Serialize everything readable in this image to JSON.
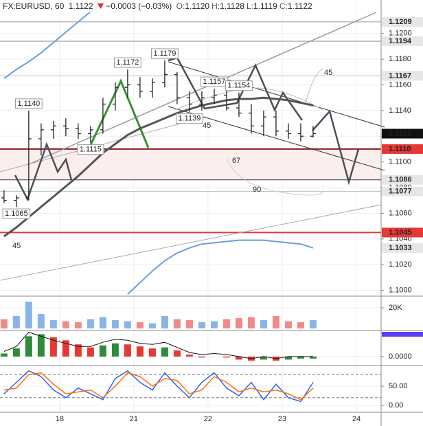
{
  "header": {
    "symbol": "FX:EURUSD, 60",
    "last": "1.1122",
    "change": "−0.0003 (−0.03%)",
    "ohlc": [
      {
        "key": "O:",
        "value": "1.1120"
      },
      {
        "key": "H:",
        "value": "1.1128"
      },
      {
        "key": "L:",
        "value": "1.1119"
      },
      {
        "key": "C:",
        "value": "1.1122"
      }
    ]
  },
  "chart_data": [
    {
      "type": "ohlc",
      "color": "#222",
      "x": [
        -18,
        -14,
        -10,
        -6,
        -2,
        2,
        6,
        10,
        14,
        18,
        22,
        26,
        30,
        34,
        38,
        42,
        46,
        50,
        54,
        58,
        62,
        66,
        70,
        74,
        78,
        82
      ],
      "open": [
        1.1072,
        1.107,
        1.1072,
        1.1118,
        1.1125,
        1.1128,
        1.1126,
        1.1122,
        1.1125,
        1.1145,
        1.1158,
        1.116,
        1.1155,
        1.1162,
        1.1168,
        1.115,
        1.1145,
        1.115,
        1.1152,
        1.1142,
        1.1138,
        1.1128,
        1.1135,
        1.1124,
        1.1122,
        1.112
      ],
      "high": [
        1.1078,
        1.1074,
        1.114,
        1.113,
        1.1132,
        1.1134,
        1.113,
        1.1128,
        1.115,
        1.1162,
        1.1172,
        1.1166,
        1.1165,
        1.1179,
        1.117,
        1.1155,
        1.1155,
        1.1157,
        1.1158,
        1.1154,
        1.1145,
        1.114,
        1.114,
        1.113,
        1.113,
        1.1128
      ],
      "low": [
        1.1068,
        1.1065,
        1.107,
        1.1105,
        1.1118,
        1.112,
        1.1118,
        1.1115,
        1.1122,
        1.114,
        1.115,
        1.115,
        1.115,
        1.1158,
        1.1145,
        1.1139,
        1.114,
        1.1145,
        1.114,
        1.1135,
        1.1122,
        1.112,
        1.112,
        1.1118,
        1.1116,
        1.1119
      ],
      "close": [
        1.107,
        1.1072,
        1.1118,
        1.1125,
        1.1128,
        1.1126,
        1.1122,
        1.1125,
        1.1145,
        1.1158,
        1.116,
        1.1155,
        1.1162,
        1.1168,
        1.115,
        1.1145,
        1.115,
        1.1152,
        1.1142,
        1.1138,
        1.1128,
        1.1135,
        1.1124,
        1.1122,
        1.112,
        1.1122
      ],
      "xlim": [
        -19.3,
        104
      ],
      "ylim": [
        1.0996,
        1.1225
      ],
      "xticks": [
        {
          "value": 0,
          "label": "18"
        },
        {
          "value": 24,
          "label": "21"
        },
        {
          "value": 48,
          "label": "22"
        },
        {
          "value": 72,
          "label": "23"
        },
        {
          "value": 96,
          "label": "24"
        }
      ],
      "yticks": [
        {
          "value": 1.1,
          "label": "1.1000"
        },
        {
          "value": 1.102,
          "label": "1.1020"
        },
        {
          "value": 1.104,
          "label": "1.1040"
        },
        {
          "value": 1.106,
          "label": "1.1060"
        },
        {
          "value": 1.108,
          "label": "1.1080"
        },
        {
          "value": 1.11,
          "label": "1.1100"
        },
        {
          "value": 1.112,
          "label": "1.1120"
        },
        {
          "value": 1.114,
          "label": "1.1140"
        },
        {
          "value": 1.116,
          "label": "1.1160"
        },
        {
          "value": 1.118,
          "label": "1.1180"
        },
        {
          "value": 1.12,
          "label": "1.1200"
        }
      ],
      "grid": true,
      "overlays": [
        {
          "color": "#555",
          "width": 3,
          "values": [
            1.1042,
            1.1049,
            1.1057,
            1.1065,
            1.1073,
            1.1081,
            1.1089,
            1.1098,
            1.1107,
            1.1114,
            1.1121,
            1.1126,
            1.113,
            1.1134,
            1.1138,
            1.1141,
            1.1144,
            1.1146,
            1.1148,
            1.1149,
            1.1149,
            1.115,
            1.1149,
            1.1148,
            1.1146,
            1.1144
          ]
        },
        {
          "color": "#6a9fd8",
          "width": 2,
          "values": [
            null,
            null,
            null,
            null,
            null,
            null,
            null,
            null,
            null,
            null,
            1.0997,
            1.1006,
            1.1015,
            1.1023,
            1.1029,
            1.1033,
            1.1036,
            1.1037,
            1.1038,
            1.1039,
            1.1039,
            1.1039,
            1.1038,
            1.1037,
            1.1036,
            1.1033
          ]
        },
        {
          "color": "#6a9fd8",
          "width": 2,
          "values": [
            1.1165,
            1.1172,
            1.1178,
            1.1185,
            1.1193,
            1.1201,
            1.1209,
            1.1217,
            1.1223,
            null,
            null,
            null,
            null,
            null,
            null,
            null,
            null,
            null,
            null,
            null,
            null,
            null,
            null,
            null,
            null,
            null
          ]
        }
      ],
      "levels": [
        {
          "value": 1.1209,
          "label": "1.1209",
          "color": "#e6e6e6",
          "text_color": "#222",
          "line_color": "#999"
        },
        {
          "value": 1.1194,
          "label": "1.1194",
          "color": "#e6e6e6",
          "text_color": "#222",
          "line_color": "#888"
        },
        {
          "value": 1.1167,
          "label": "1.1167",
          "color": "#e6e6e6",
          "text_color": "#222",
          "line_color": "#bbb"
        },
        {
          "value": 1.1122,
          "label": "1.1122",
          "color": "#111",
          "text_color": "#fff"
        },
        {
          "value": 1.111,
          "label": "1.1110",
          "color": "#e53935",
          "text_color": "#fff",
          "line_color": "#8b1a1a",
          "band": "#fdeeee"
        },
        {
          "value": 1.1086,
          "label": "1.1086",
          "color": "#e6e6e6",
          "text_color": "#222",
          "line_color": "#333"
        },
        {
          "value": 1.1077,
          "label": "1.1077",
          "color": "#e6e6e6",
          "text_color": "#222",
          "line_color": "#bbb"
        },
        {
          "value": 1.1045,
          "label": "1.1045",
          "color": "#e53935",
          "text_color": "#fff",
          "line_color": "#e53935"
        },
        {
          "value": 1.1033,
          "label": "1.1033",
          "color": "#e6e6e6",
          "text_color": "#222"
        }
      ],
      "point_labels": [
        {
          "value": 1.114,
          "label": "1.1140"
        },
        {
          "value": 1.1172,
          "label": "1.1172"
        },
        {
          "value": 1.1179,
          "label": "1.1179"
        },
        {
          "value": 1.1157,
          "label": "1.1157"
        },
        {
          "value": 1.1154,
          "label": "1.1154"
        },
        {
          "value": 1.1139,
          "label": "1.1139"
        },
        {
          "value": 1.1115,
          "label": "1.1115"
        },
        {
          "value": 1.1065,
          "label": "1.1065"
        }
      ],
      "annotations": [
        "45",
        "45",
        "67",
        "90",
        "45"
      ]
    },
    {
      "type": "volume",
      "color": "#8ab4e8",
      "down_color": "#f08a8a",
      "values": [
        9000,
        12000,
        26000,
        14000,
        8000,
        7000,
        6000,
        9000,
        11000,
        8000,
        7000,
        6000,
        5000,
        12000,
        9000,
        8000,
        6000,
        7000,
        9000,
        10000,
        11000,
        8000,
        12000,
        7000,
        6000,
        8000
      ],
      "ylim": [
        0,
        30000
      ],
      "yticks": [
        {
          "value": 20000,
          "label": "20K"
        }
      ]
    },
    {
      "type": "macd",
      "color": "#2e8b3a",
      "down_color": "#e53935",
      "values": [
        0.0003,
        0.0008,
        0.002,
        0.0022,
        0.0019,
        0.0016,
        0.0012,
        0.0009,
        0.0011,
        0.0013,
        0.0012,
        0.001,
        0.0008,
        0.0009,
        0.0006,
        0.0002,
        -0.0001,
        0.0,
        -0.0001,
        -0.0003,
        -0.0004,
        -0.0003,
        -0.0004,
        -0.0003,
        -0.0002,
        -0.0002
      ],
      "series": [
        {
          "color": "#111",
          "values": [
            0.0005,
            0.001,
            0.0024,
            0.002,
            0.0016,
            0.0013,
            0.001,
            0.001,
            0.0014,
            0.0017,
            0.0016,
            0.0013,
            0.0012,
            0.0014,
            0.0009,
            0.0004,
            0.0002,
            0.0003,
            0.0002,
            0.0,
            -0.0002,
            0.0,
            -0.0002,
            0.0,
            0.0,
            0.0
          ]
        }
      ],
      "ylim": [
        -0.00075,
        0.0025
      ],
      "yticks": [
        {
          "value": 0,
          "label": "0.0000"
        }
      ]
    },
    {
      "type": "line",
      "series": [
        {
          "color": "#2962ff",
          "values": [
            30,
            60,
            90,
            75,
            40,
            20,
            45,
            30,
            15,
            70,
            90,
            60,
            40,
            85,
            50,
            20,
            60,
            85,
            45,
            25,
            60,
            15,
            55,
            20,
            10,
            60
          ]
        },
        {
          "color": "#ff6d00",
          "values": [
            40,
            45,
            80,
            85,
            55,
            30,
            35,
            40,
            20,
            50,
            85,
            75,
            50,
            70,
            65,
            30,
            40,
            75,
            60,
            35,
            45,
            35,
            40,
            30,
            15,
            45
          ]
        }
      ],
      "bands": [
        80,
        20
      ],
      "ylim": [
        -18,
        102
      ],
      "yticks": [
        {
          "value": 50,
          "label": "50.00"
        },
        {
          "value": 0,
          "label": "0.00"
        }
      ]
    }
  ]
}
